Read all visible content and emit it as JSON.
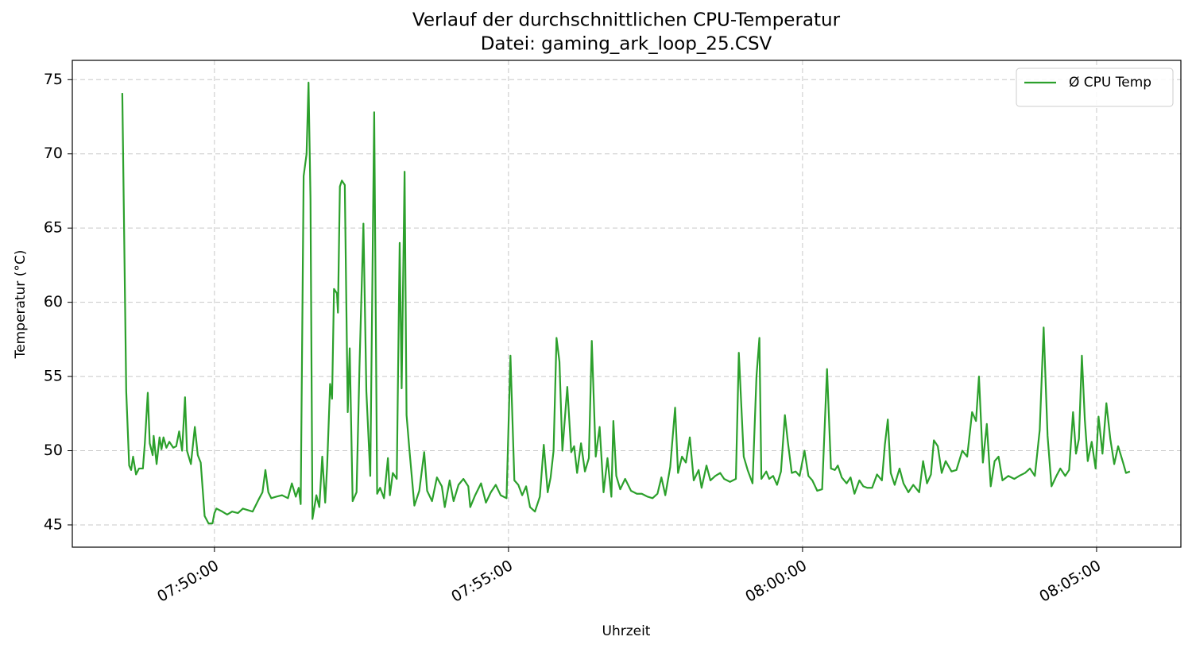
{
  "chart_data": {
    "type": "line",
    "title": "Verlauf der durchschnittlichen CPU-Temperatur",
    "subtitle": "Datei: gaming_ark_loop_25.CSV",
    "x_label": "Uhrzeit",
    "y_label": "Temperatur (°C)",
    "x": [
      "07:48:26",
      "07:48:30",
      "07:48:33",
      "07:48:35",
      "07:48:37",
      "07:48:40",
      "07:48:43",
      "07:48:47",
      "07:48:49",
      "07:48:52",
      "07:48:54",
      "07:48:57",
      "07:48:58",
      "07:49:01",
      "07:49:04",
      "07:49:06",
      "07:49:08",
      "07:49:11",
      "07:49:14",
      "07:49:18",
      "07:49:21",
      "07:49:24",
      "07:49:27",
      "07:49:30",
      "07:49:32",
      "07:49:36",
      "07:49:40",
      "07:49:43",
      "07:49:46",
      "07:49:50",
      "07:49:54",
      "07:49:58",
      "07:50:00",
      "07:50:02",
      "07:50:08",
      "07:50:13",
      "07:50:18",
      "07:50:24",
      "07:50:29",
      "07:50:34",
      "07:50:39",
      "07:50:45",
      "07:50:49",
      "07:50:52",
      "07:50:55",
      "07:50:58",
      "07:51:03",
      "07:51:09",
      "07:51:15",
      "07:51:19",
      "07:51:23",
      "07:51:26",
      "07:51:28",
      "07:51:31",
      "07:51:34",
      "07:51:36",
      "07:51:38",
      "07:51:40",
      "07:51:44",
      "07:51:47",
      "07:51:50",
      "07:51:53",
      "07:51:55",
      "07:51:58",
      "07:52:00",
      "07:52:02",
      "07:52:05",
      "07:52:06",
      "07:52:08",
      "07:52:10",
      "07:52:13",
      "07:52:16",
      "07:52:18",
      "07:52:21",
      "07:52:25",
      "07:52:28",
      "07:52:32",
      "07:52:35",
      "07:52:39",
      "07:52:43",
      "07:52:46",
      "07:52:49",
      "07:52:53",
      "07:52:57",
      "07:52:59",
      "07:53:02",
      "07:53:06",
      "07:53:09",
      "07:53:11",
      "07:53:14",
      "07:53:16",
      "07:53:19",
      "07:53:24",
      "07:53:29",
      "07:53:34",
      "07:53:37",
      "07:53:42",
      "07:53:47",
      "07:53:52",
      "07:53:55",
      "07:54:00",
      "07:54:04",
      "07:54:09",
      "07:54:14",
      "07:54:19",
      "07:54:21",
      "07:54:26",
      "07:54:32",
      "07:54:37",
      "07:54:42",
      "07:54:47",
      "07:54:52",
      "07:54:58",
      "07:55:02",
      "07:55:06",
      "07:55:10",
      "07:55:14",
      "07:55:18",
      "07:55:22",
      "07:55:27",
      "07:55:32",
      "07:55:36",
      "07:55:40",
      "07:55:43",
      "07:55:46",
      "07:55:49",
      "07:55:52",
      "07:55:55",
      "07:56:00",
      "07:56:04",
      "07:56:07",
      "07:56:10",
      "07:56:14",
      "07:56:18",
      "07:56:22",
      "07:56:25",
      "07:56:29",
      "07:56:33",
      "07:56:37",
      "07:56:41",
      "07:56:45",
      "07:56:47",
      "07:56:50",
      "07:56:54",
      "07:56:59",
      "07:57:05",
      "07:57:11",
      "07:57:16",
      "07:57:22",
      "07:57:27",
      "07:57:32",
      "07:57:36",
      "07:57:40",
      "07:57:45",
      "07:57:50",
      "07:57:53",
      "07:57:57",
      "07:58:01",
      "07:58:05",
      "07:58:09",
      "07:58:14",
      "07:58:17",
      "07:58:22",
      "07:58:26",
      "07:58:31",
      "07:58:36",
      "07:58:40",
      "07:58:46",
      "07:58:52",
      "07:58:55",
      "07:59:00",
      "07:59:04",
      "07:59:09",
      "07:59:13",
      "07:59:16",
      "07:59:18",
      "07:59:23",
      "07:59:26",
      "07:59:30",
      "07:59:34",
      "07:59:38",
      "07:59:42",
      "07:59:45",
      "07:59:49",
      "07:59:53",
      "07:59:57",
      "08:00:02",
      "08:00:06",
      "08:00:10",
      "08:00:15",
      "08:00:20",
      "08:00:25",
      "08:00:29",
      "08:00:33",
      "08:00:36",
      "08:00:40",
      "08:00:45",
      "08:00:49",
      "08:00:53",
      "08:00:58",
      "08:01:02",
      "08:01:06",
      "08:01:11",
      "08:01:16",
      "08:01:21",
      "08:01:24",
      "08:01:27",
      "08:01:30",
      "08:01:34",
      "08:01:39",
      "08:01:43",
      "08:01:48",
      "08:01:53",
      "08:01:59",
      "08:02:03",
      "08:02:07",
      "08:02:11",
      "08:02:14",
      "08:02:18",
      "08:02:22",
      "08:02:26",
      "08:02:32",
      "08:02:37",
      "08:02:43",
      "08:02:48",
      "08:02:53",
      "08:02:57",
      "08:03:00",
      "08:03:04",
      "08:03:08",
      "08:03:12",
      "08:03:16",
      "08:03:20",
      "08:03:24",
      "08:03:30",
      "08:03:36",
      "08:03:41",
      "08:03:47",
      "08:03:52",
      "08:03:57",
      "08:04:02",
      "08:04:06",
      "08:04:10",
      "08:04:14",
      "08:04:19",
      "08:04:23",
      "08:04:28",
      "08:04:32",
      "08:04:36",
      "08:04:39",
      "08:04:42",
      "08:04:45",
      "08:04:48",
      "08:04:51",
      "08:04:55",
      "08:04:59",
      "08:05:02",
      "08:05:06",
      "08:05:10",
      "08:05:14",
      "08:05:18",
      "08:05:22",
      "08:05:27",
      "08:05:30",
      "08:05:34"
    ],
    "series": [
      {
        "name": "Ø CPU Temp",
        "color": "#2ca02c",
        "values": [
          74.1,
          54,
          49,
          48.7,
          49.6,
          48.4,
          48.8,
          48.8,
          50.5,
          53.9,
          50.5,
          49.7,
          51,
          49.1,
          50.9,
          50.1,
          50.9,
          50.2,
          50.6,
          50.2,
          50.3,
          51.3,
          50,
          53.6,
          50,
          49.1,
          51.6,
          49.7,
          49.2,
          45.6,
          45.1,
          45.1,
          45.8,
          46.1,
          45.9,
          45.7,
          45.9,
          45.8,
          46.1,
          46,
          45.9,
          46.7,
          47.2,
          48.7,
          47.2,
          46.8,
          46.9,
          47,
          46.8,
          47.8,
          46.9,
          47.5,
          46.4,
          68.5,
          70,
          74.8,
          67,
          45.4,
          47,
          46.2,
          49.6,
          46.5,
          49,
          54.5,
          53.5,
          60.9,
          60.6,
          59.3,
          67.8,
          68.2,
          67.9,
          52.6,
          56.9,
          46.6,
          47.2,
          55.7,
          65.3,
          54,
          48.3,
          72.8,
          47.1,
          47.5,
          46.8,
          49.5,
          47,
          48.5,
          48.1,
          64,
          54.2,
          68.8,
          52.4,
          50,
          46.3,
          47.3,
          49.9,
          47.3,
          46.6,
          48.2,
          47.6,
          46.2,
          48,
          46.6,
          47.7,
          48.1,
          47.6,
          46.2,
          47,
          47.8,
          46.5,
          47.2,
          47.7,
          47,
          46.8,
          56.4,
          48,
          47.7,
          47,
          47.6,
          46.2,
          45.9,
          46.9,
          50.4,
          47.2,
          48.2,
          50,
          57.6,
          56,
          50,
          54.3,
          49.9,
          50.3,
          48.5,
          50.5,
          48.6,
          49.5,
          57.4,
          49.6,
          51.6,
          47.2,
          49.5,
          46.9,
          52,
          48.3,
          47.4,
          48.1,
          47.3,
          47.1,
          47.1,
          46.9,
          46.8,
          47.1,
          48.2,
          47,
          48.9,
          52.9,
          48.5,
          49.6,
          49.2,
          50.9,
          48,
          48.7,
          47.5,
          49,
          48,
          48.3,
          48.5,
          48.1,
          47.9,
          48.1,
          56.6,
          49.6,
          48.7,
          47.8,
          55,
          57.6,
          48.1,
          48.6,
          48.1,
          48.3,
          47.7,
          48.6,
          52.4,
          50.6,
          48.5,
          48.6,
          48.3,
          50,
          48.3,
          48,
          47.3,
          47.4,
          55.5,
          48.8,
          48.7,
          49,
          48.2,
          47.8,
          48.2,
          47.1,
          48,
          47.6,
          47.5,
          47.5,
          48.4,
          48,
          50.4,
          52.1,
          48.5,
          47.7,
          48.8,
          47.8,
          47.2,
          47.7,
          47.2,
          49.3,
          47.8,
          48.4,
          50.7,
          50.3,
          48.5,
          49.3,
          48.6,
          48.7,
          50,
          49.6,
          52.6,
          52,
          55,
          49.2,
          51.8,
          47.6,
          49.3,
          49.6,
          48,
          48.3,
          48.1,
          48.3,
          48.5,
          48.8,
          48.3,
          51.4,
          58.3,
          51,
          47.6,
          48.3,
          48.8,
          48.3,
          48.7,
          52.6,
          49.8,
          50.8,
          56.4,
          52.1,
          49.3,
          50.6,
          48.8,
          52.3,
          49.8,
          53.2,
          50.8,
          49.1,
          50.3,
          49.2,
          48.5,
          48.6
        ]
      }
    ],
    "xlim": [
      "07:47:35",
      "08:06:26"
    ],
    "xticks": [
      "07:50:00",
      "07:55:00",
      "08:00:00",
      "08:05:00"
    ],
    "ylim": [
      43.5,
      76.3
    ],
    "yticks": [
      45,
      50,
      55,
      60,
      65,
      70,
      75
    ],
    "grid": true,
    "legend": "upper right"
  }
}
